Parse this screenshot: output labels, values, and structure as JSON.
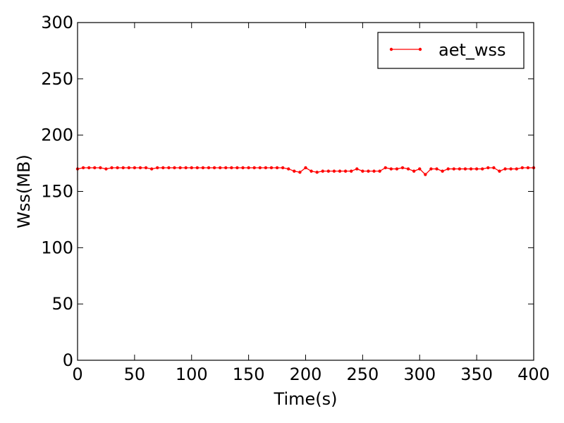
{
  "chart_data": {
    "type": "line",
    "title": "",
    "xlabel": "Time(s)",
    "ylabel": "Wss(MB)",
    "xlim": [
      0,
      400
    ],
    "ylim": [
      0,
      300
    ],
    "xticks": [
      0,
      50,
      100,
      150,
      200,
      250,
      300,
      350,
      400
    ],
    "yticks": [
      0,
      50,
      100,
      150,
      200,
      250,
      300
    ],
    "xtick_labels": [
      "0",
      "50",
      "100",
      "150",
      "200",
      "250",
      "300",
      "350",
      "400"
    ],
    "ytick_labels": [
      "0",
      "50",
      "100",
      "150",
      "200",
      "250",
      "300"
    ],
    "grid": false,
    "legend_position": "top-right",
    "series": [
      {
        "name": "aet_wss",
        "color": "#ff0000",
        "marker": "dot",
        "x": [
          0,
          5,
          10,
          15,
          20,
          25,
          30,
          35,
          40,
          45,
          50,
          55,
          60,
          65,
          70,
          75,
          80,
          85,
          90,
          95,
          100,
          105,
          110,
          115,
          120,
          125,
          130,
          135,
          140,
          145,
          150,
          155,
          160,
          165,
          170,
          175,
          180,
          185,
          190,
          195,
          200,
          205,
          210,
          215,
          220,
          225,
          230,
          235,
          240,
          245,
          250,
          255,
          260,
          265,
          270,
          275,
          280,
          285,
          290,
          295,
          300,
          305,
          310,
          315,
          320,
          325,
          330,
          335,
          340,
          345,
          350,
          355,
          360,
          365,
          370,
          375,
          380,
          385,
          390,
          395,
          400
        ],
        "y": [
          170,
          171,
          171,
          171,
          171,
          170,
          171,
          171,
          171,
          171,
          171,
          171,
          171,
          170,
          171,
          171,
          171,
          171,
          171,
          171,
          171,
          171,
          171,
          171,
          171,
          171,
          171,
          171,
          171,
          171,
          171,
          171,
          171,
          171,
          171,
          171,
          171,
          170,
          168,
          167,
          171,
          168,
          167,
          168,
          168,
          168,
          168,
          168,
          168,
          170,
          168,
          168,
          168,
          168,
          171,
          170,
          170,
          171,
          170,
          168,
          170,
          165,
          170,
          170,
          168,
          170,
          170,
          170,
          170,
          170,
          170,
          170,
          171,
          171,
          168,
          170,
          170,
          170,
          171,
          171,
          171
        ]
      }
    ]
  }
}
